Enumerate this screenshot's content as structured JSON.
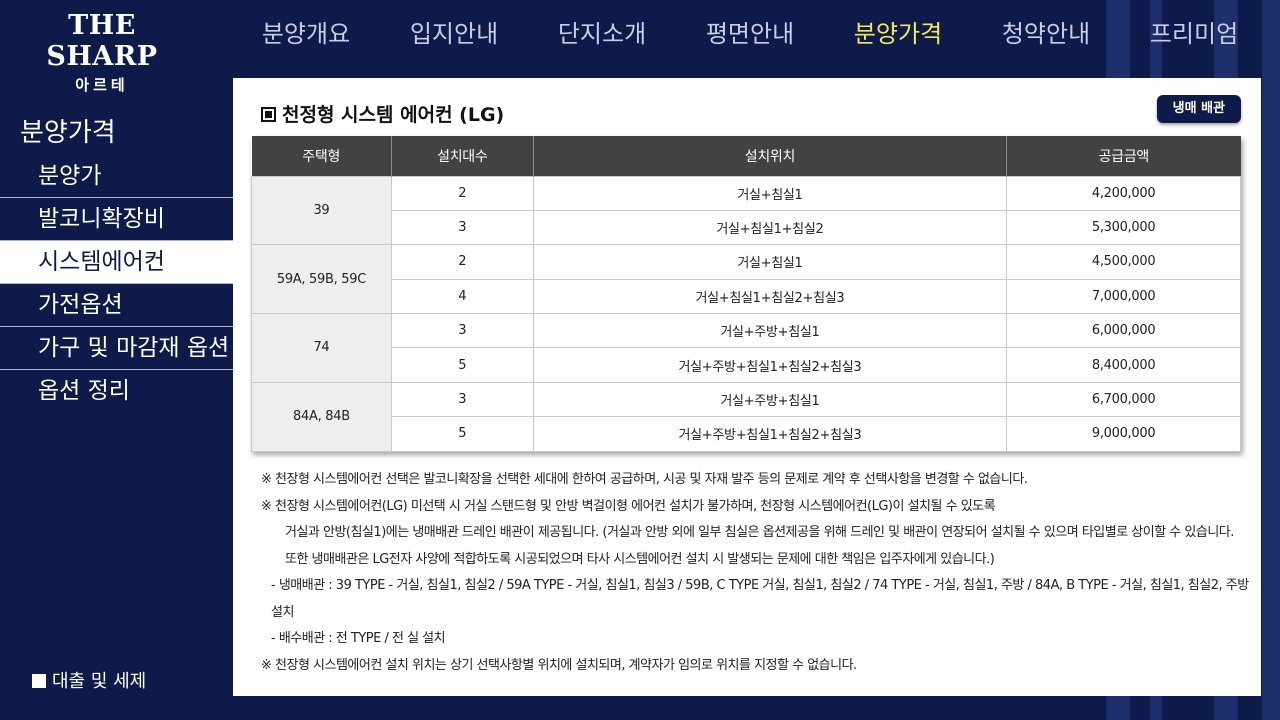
{
  "header": {
    "logo_main": "THE SHARP",
    "logo_sub": "아르테",
    "nav": [
      {
        "label": "분양개요",
        "active": false
      },
      {
        "label": "입지안내",
        "active": false
      },
      {
        "label": "단지소개",
        "active": false
      },
      {
        "label": "평면안내",
        "active": false
      },
      {
        "label": "분양가격",
        "active": true
      },
      {
        "label": "청약안내",
        "active": false
      },
      {
        "label": "프리미엄",
        "active": false
      }
    ]
  },
  "sidebar": {
    "title": "분양가격",
    "items": [
      {
        "label": "분양가",
        "active": false
      },
      {
        "label": "발코니확장비",
        "active": false
      },
      {
        "label": "시스템에어컨",
        "active": true
      },
      {
        "label": "가전옵션",
        "active": false
      },
      {
        "label": "가구 및 마감재 옵션",
        "active": false
      },
      {
        "label": "옵션 정리",
        "active": false
      }
    ],
    "bottom_link": "대출 및 세제"
  },
  "main": {
    "title": "천정형 시스템 에어컨 (LG)",
    "button_label": "냉매 배관",
    "table": {
      "headers": [
        "주택형",
        "설치대수",
        "설치위치",
        "공급금액"
      ],
      "groups": [
        {
          "type": "39",
          "rows": [
            {
              "count": "2",
              "location": "거실+침실1",
              "price": "4,200,000"
            },
            {
              "count": "3",
              "location": "거실+침실1+침실2",
              "price": "5,300,000"
            }
          ]
        },
        {
          "type": "59A, 59B, 59C",
          "rows": [
            {
              "count": "2",
              "location": "거실+침실1",
              "price": "4,500,000"
            },
            {
              "count": "4",
              "location": "거실+침실1+침실2+침실3",
              "price": "7,000,000"
            }
          ]
        },
        {
          "type": "74",
          "rows": [
            {
              "count": "3",
              "location": "거실+주방+침실1",
              "price": "6,000,000"
            },
            {
              "count": "5",
              "location": "거실+주방+침실1+침실2+침실3",
              "price": "8,400,000"
            }
          ]
        },
        {
          "type": "84A, 84B",
          "rows": [
            {
              "count": "3",
              "location": "거실+주방+침실1",
              "price": "6,700,000"
            },
            {
              "count": "5",
              "location": "거실+주방+침실1+침실2+침실3",
              "price": "9,000,000"
            }
          ]
        }
      ]
    },
    "notes": [
      "※ 천장형 시스템에어컨 선택은 발코니확장을 선택한 세대에 한하여 공급하며, 시공 및 자재 발주 등의 문제로 계약 후 선택사항을 변경할 수 없습니다.",
      "※ 천장형 시스템에어컨(LG) 미선택 시 거실 스탠드형 및 안방 벽걸이형 에어컨 설치가 불가하며, 천장형 시스템에어컨(LG)이 설치될 수 있도록",
      "거실과 안방(침실1)에는 냉매배관 드레인 배관이 제공됩니다. (거실과 안방 외에 일부 침실은 옵션제공을 위해 드레인 및 배관이 연장되어 설치될 수 있으며 타입별로 상이할 수 있습니다.",
      "또한 냉매배관은 LG전자 사양에 적합하도록 시공되었으며 타사 시스템에어컨 설치 시 발생되는 문제에 대한 책임은 입주자에게 있습니다.)",
      "- 냉매배관 : 39 TYPE - 거실, 침실1, 침실2 / 59A TYPE - 거실, 침실1, 침실3 / 59B, C TYPE 거실, 침실1, 침실2 / 74 TYPE - 거실, 침실1, 주방 / 84A, B TYPE - 거실, 침실1, 침실2, 주방 설치",
      "- 배수배관 : 전 TYPE / 전 실 설치",
      "※ 천장형 시스템에어컨 설치 위치는 상기 선택사항별 위치에 설치되며, 계약자가 임의로 위치를 지정할 수 없습니다."
    ]
  }
}
